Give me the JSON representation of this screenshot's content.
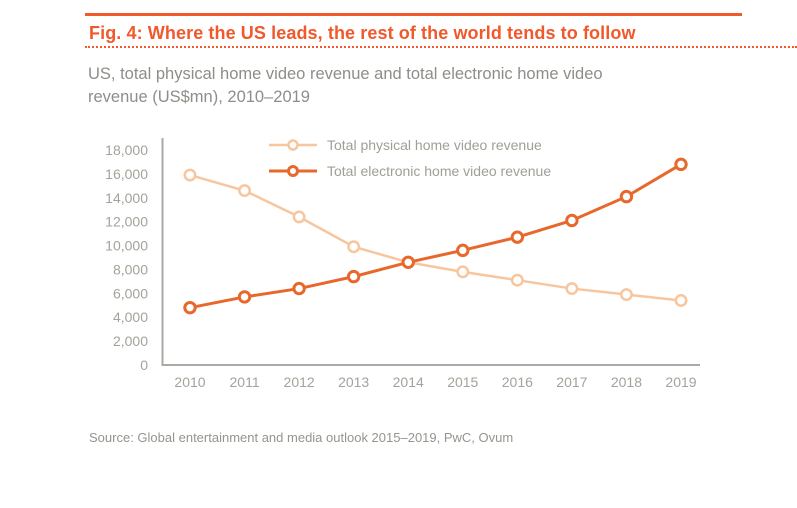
{
  "figure": {
    "title": "Fig. 4: Where the US leads, the rest of the world tends to follow",
    "subtitle_lines": [
      "US, total physical home video revenue and total electronic home video",
      "revenue (US$mn), 2010–2019"
    ],
    "source": "Source: Global entertainment and media outlook 2015–2019, PwC, Ovum"
  },
  "colors": {
    "accent_orange": "#F1582B",
    "physical_line": "#F8C69E",
    "electronic_line": "#E8682C",
    "subtitle_gray": "#8F8D88",
    "axis_text_gray": "#A5A29B",
    "legend_text_gray": "#A19E97",
    "source_gray": "#96948E",
    "axis_line_gray": "#ABA9A3"
  },
  "chart_data": {
    "type": "line",
    "x": [
      "2010",
      "2011",
      "2012",
      "2013",
      "2014",
      "2015",
      "2016",
      "2017",
      "2018",
      "2019"
    ],
    "series": [
      {
        "name": "Total physical home video revenue",
        "color": "#F8C69E",
        "values": [
          15900,
          14600,
          12400,
          9900,
          8600,
          7800,
          7100,
          6400,
          5900,
          5400
        ]
      },
      {
        "name": "Total electronic home video revenue",
        "color": "#E8682C",
        "values": [
          4800,
          5700,
          6400,
          7400,
          8600,
          9600,
          10700,
          12100,
          14100,
          16800
        ]
      }
    ],
    "title": "US, total physical home video revenue and total electronic home video revenue (US$mn), 2010–2019",
    "xlabel": "",
    "ylabel": "",
    "ylim": [
      0,
      18000
    ],
    "ytick_step": 2000,
    "ytick_format": "thousands-comma",
    "grid": false,
    "legend_position": "top-inside",
    "marker": "open-circle"
  }
}
